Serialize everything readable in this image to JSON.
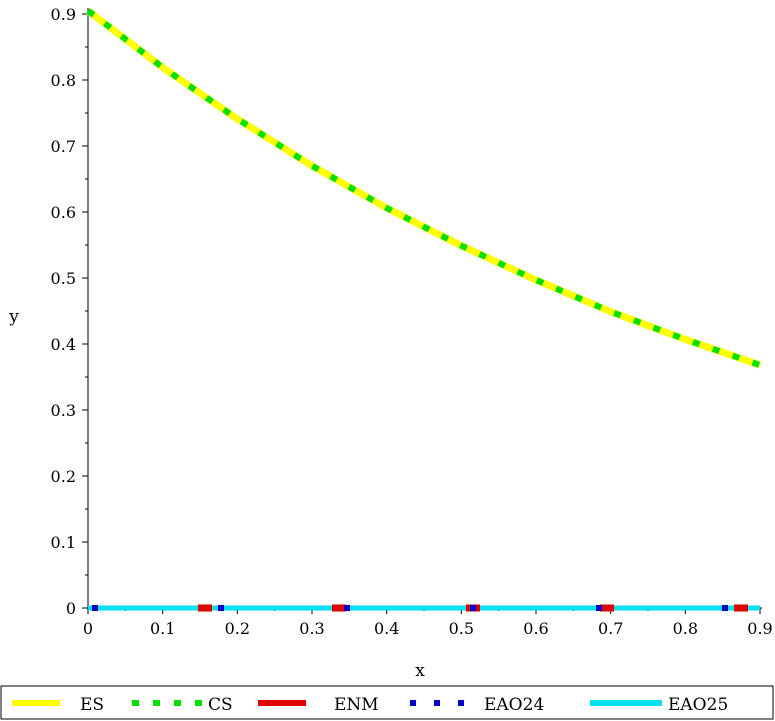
{
  "chart_data": {
    "type": "line",
    "title": "",
    "xlabel": "x",
    "ylabel": "y",
    "xlim": [
      0,
      0.9
    ],
    "ylim": [
      0,
      0.9
    ],
    "grid": false,
    "legend_position": "bottom",
    "x_ticks": [
      "0",
      "0.1",
      "0.2",
      "0.3",
      "0.4",
      "0.5",
      "0.6",
      "0.7",
      "0.8",
      "0.9"
    ],
    "y_ticks": [
      "0",
      "0.1",
      "0.2",
      "0.3",
      "0.4",
      "0.5",
      "0.6",
      "0.7",
      "0.8",
      "0.9"
    ],
    "x": [
      0,
      0.1,
      0.2,
      0.3,
      0.4,
      0.5,
      0.6,
      0.7,
      0.8,
      0.9
    ],
    "series": [
      {
        "name": "ES",
        "color": "#ffff00",
        "style": "solid",
        "values": [
          0.905,
          0.819,
          0.741,
          0.67,
          0.606,
          0.549,
          0.497,
          0.449,
          0.407,
          0.368
        ]
      },
      {
        "name": "CS",
        "color": "#00e000",
        "style": "dotted",
        "values": [
          0.905,
          0.819,
          0.741,
          0.67,
          0.606,
          0.549,
          0.497,
          0.449,
          0.407,
          0.368
        ]
      },
      {
        "name": "ENM",
        "color": "#e00000",
        "style": "solid",
        "values": [
          0,
          0,
          0,
          0,
          0,
          0,
          0,
          0,
          0,
          0
        ]
      },
      {
        "name": "EAO24",
        "color": "#0000c8",
        "style": "dotted",
        "values": [
          0,
          0,
          0,
          0,
          0,
          0,
          0,
          0,
          0,
          0
        ]
      },
      {
        "name": "EAO25",
        "color": "#00e0f0",
        "style": "solid",
        "values": [
          0,
          0,
          0,
          0,
          0,
          0,
          0,
          0,
          0,
          0
        ]
      }
    ]
  }
}
